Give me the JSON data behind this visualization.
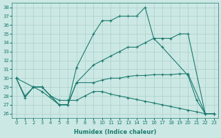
{
  "xlabel": "Humidex (Indice chaleur)",
  "xlim": [
    -0.5,
    23.5
  ],
  "ylim": [
    25.5,
    38.5
  ],
  "xticks": [
    0,
    1,
    2,
    3,
    4,
    5,
    6,
    7,
    8,
    9,
    10,
    11,
    12,
    13,
    14,
    15,
    16,
    17,
    18,
    19,
    20,
    21,
    22,
    23
  ],
  "yticks": [
    26,
    27,
    28,
    29,
    30,
    31,
    32,
    33,
    34,
    35,
    36,
    37,
    38
  ],
  "bg_color": "#cce8e4",
  "grid_color": "#aacfcb",
  "line_color": "#1a7a6e",
  "series": [
    {
      "x": [
        0,
        1,
        2,
        3,
        5,
        6,
        7,
        9,
        10,
        11,
        12,
        13,
        14,
        15,
        16,
        17,
        20,
        21,
        22,
        23
      ],
      "y": [
        30.0,
        27.8,
        29.0,
        28.5,
        27.0,
        27.0,
        31.2,
        35.0,
        36.5,
        36.5,
        37.0,
        37.0,
        37.0,
        38.0,
        34.5,
        33.5,
        30.3,
        27.5,
        26.0,
        26.0
      ]
    },
    {
      "x": [
        2,
        3,
        5,
        6,
        7,
        9,
        10,
        11,
        12,
        13,
        14,
        15,
        16,
        17,
        18,
        19,
        20,
        22,
        23
      ],
      "y": [
        29.0,
        29.0,
        27.0,
        27.0,
        29.5,
        31.5,
        32.0,
        32.5,
        33.0,
        33.5,
        33.5,
        34.0,
        34.5,
        34.5,
        34.5,
        35.0,
        35.0,
        26.0,
        26.0
      ]
    },
    {
      "x": [
        0,
        2,
        3,
        5,
        6,
        7,
        9,
        10,
        11,
        12,
        13,
        14,
        15,
        16,
        17,
        18,
        19,
        20,
        22,
        23
      ],
      "y": [
        30.0,
        29.0,
        29.0,
        27.0,
        27.0,
        29.5,
        29.5,
        29.8,
        30.0,
        30.0,
        30.2,
        30.3,
        30.3,
        30.4,
        30.4,
        30.4,
        30.5,
        30.5,
        26.0,
        26.0
      ]
    },
    {
      "x": [
        0,
        1,
        2,
        3,
        4,
        5,
        6,
        7,
        8,
        9,
        10,
        11,
        12,
        13,
        14,
        15,
        16,
        17,
        18,
        19,
        20,
        21,
        22,
        23
      ],
      "y": [
        30.0,
        28.0,
        29.0,
        29.0,
        28.0,
        27.5,
        27.5,
        27.5,
        28.0,
        28.5,
        28.5,
        28.2,
        28.0,
        27.8,
        27.6,
        27.4,
        27.2,
        27.0,
        26.8,
        26.6,
        26.4,
        26.2,
        26.0,
        26.0
      ]
    }
  ]
}
